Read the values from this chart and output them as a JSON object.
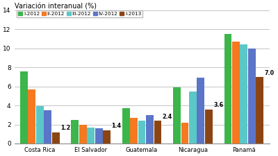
{
  "title": "Variación interanual (%)",
  "categories": [
    "Costa Rica",
    "El Salvador",
    "Guatemala",
    "Nicaragua",
    "Panamá"
  ],
  "series": [
    {
      "label": "I-2012",
      "color": "#3cb54a",
      "values": [
        7.6,
        2.5,
        3.7,
        5.9,
        11.5
      ]
    },
    {
      "label": "II-2012",
      "color": "#f47920",
      "values": [
        5.7,
        2.0,
        2.7,
        2.2,
        10.7
      ]
    },
    {
      "label": "III-2012",
      "color": "#5bc8c8",
      "values": [
        3.9,
        1.7,
        2.4,
        5.5,
        10.4
      ]
    },
    {
      "label": "IV-2012",
      "color": "#5b75c8",
      "values": [
        3.5,
        1.6,
        3.0,
        6.9,
        10.0
      ]
    },
    {
      "label": "I-2013",
      "color": "#8b4513",
      "values": [
        1.2,
        1.4,
        2.4,
        3.6,
        7.0
      ]
    }
  ],
  "annotations": [
    {
      "country_idx": 0,
      "text": "1.2"
    },
    {
      "country_idx": 1,
      "text": "1.4"
    },
    {
      "country_idx": 2,
      "text": "2.4"
    },
    {
      "country_idx": 3,
      "text": "3.6"
    },
    {
      "country_idx": 4,
      "text": "7.0"
    }
  ],
  "ylim": [
    0,
    14
  ],
  "yticks": [
    0,
    2,
    4,
    6,
    8,
    10,
    12,
    14
  ],
  "background_color": "#ffffff",
  "grid_color": "#bbbbbb"
}
